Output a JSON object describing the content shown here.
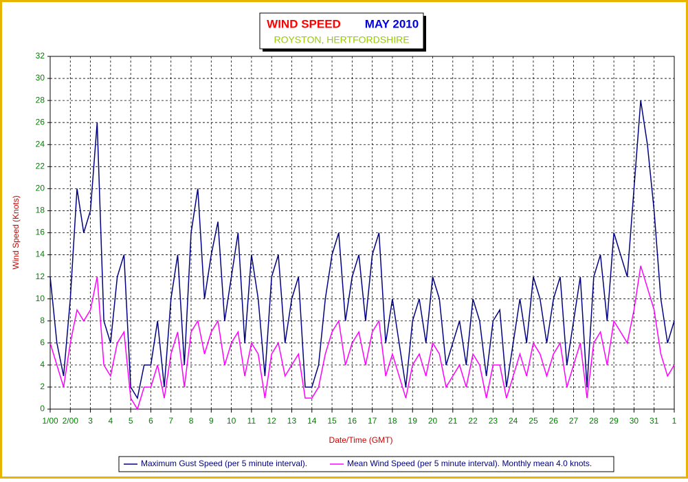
{
  "chart_data": {
    "type": "line",
    "title": "WIND SPEED",
    "title_period": "MAY 2010",
    "subtitle": "ROYSTON, HERTFORDSHIRE",
    "x_label": "Date/Time (GMT)",
    "y_label": "Wind Speed (Knots)",
    "grid": true,
    "legend": "bottom",
    "xlim": [
      0,
      744
    ],
    "ylim": [
      0,
      32
    ],
    "yticks": [
      0,
      2,
      4,
      6,
      8,
      10,
      12,
      14,
      16,
      18,
      20,
      22,
      24,
      26,
      28,
      30,
      32
    ],
    "xticks": [
      {
        "value": 0,
        "label": "1/00"
      },
      {
        "value": 24,
        "label": "2/00"
      },
      {
        "value": 48,
        "label": "3"
      },
      {
        "value": 72,
        "label": "4"
      },
      {
        "value": 96,
        "label": "5"
      },
      {
        "value": 120,
        "label": "6"
      },
      {
        "value": 144,
        "label": "7"
      },
      {
        "value": 168,
        "label": "8"
      },
      {
        "value": 192,
        "label": "9"
      },
      {
        "value": 216,
        "label": "10"
      },
      {
        "value": 240,
        "label": "11"
      },
      {
        "value": 264,
        "label": "12"
      },
      {
        "value": 288,
        "label": "13"
      },
      {
        "value": 312,
        "label": "14"
      },
      {
        "value": 336,
        "label": "15"
      },
      {
        "value": 360,
        "label": "16"
      },
      {
        "value": 384,
        "label": "17"
      },
      {
        "value": 408,
        "label": "18"
      },
      {
        "value": 432,
        "label": "19"
      },
      {
        "value": 456,
        "label": "20"
      },
      {
        "value": 480,
        "label": "21"
      },
      {
        "value": 504,
        "label": "22"
      },
      {
        "value": 528,
        "label": "23"
      },
      {
        "value": 552,
        "label": "24"
      },
      {
        "value": 576,
        "label": "25"
      },
      {
        "value": 600,
        "label": "26"
      },
      {
        "value": 624,
        "label": "27"
      },
      {
        "value": 648,
        "label": "28"
      },
      {
        "value": 672,
        "label": "29"
      },
      {
        "value": 696,
        "label": "30"
      },
      {
        "value": 720,
        "label": "31"
      },
      {
        "value": 744,
        "label": "1"
      }
    ],
    "x": [
      0,
      8,
      16,
      24,
      32,
      40,
      48,
      56,
      64,
      72,
      80,
      88,
      96,
      104,
      112,
      120,
      128,
      136,
      144,
      152,
      160,
      168,
      176,
      184,
      192,
      200,
      208,
      216,
      224,
      232,
      240,
      248,
      256,
      264,
      272,
      280,
      288,
      296,
      304,
      312,
      320,
      328,
      336,
      344,
      352,
      360,
      368,
      376,
      384,
      392,
      400,
      408,
      416,
      424,
      432,
      440,
      448,
      456,
      464,
      472,
      480,
      488,
      496,
      504,
      512,
      520,
      528,
      536,
      544,
      552,
      560,
      568,
      576,
      584,
      592,
      600,
      608,
      616,
      624,
      632,
      640,
      648,
      656,
      664,
      672,
      680,
      688,
      696,
      704,
      712,
      720,
      728,
      736,
      744
    ],
    "series": [
      {
        "name": "Maximum Gust Speed (per 5 minute interval).",
        "color": "#000080",
        "values": [
          12,
          6,
          3,
          10,
          20,
          16,
          18,
          26,
          8,
          6,
          12,
          14,
          2,
          1,
          4,
          4,
          8,
          2,
          10,
          14,
          4,
          16,
          20,
          10,
          14,
          17,
          8,
          12,
          16,
          6,
          14,
          10,
          3,
          12,
          14,
          6,
          10,
          12,
          2,
          2,
          4,
          10,
          14,
          16,
          8,
          12,
          14,
          8,
          14,
          16,
          6,
          10,
          6,
          2,
          8,
          10,
          6,
          12,
          10,
          4,
          6,
          8,
          4,
          10,
          8,
          3,
          8,
          9,
          2,
          6,
          10,
          6,
          12,
          10,
          6,
          10,
          12,
          4,
          8,
          12,
          2,
          12,
          14,
          8,
          16,
          14,
          12,
          20,
          28,
          24,
          18,
          10,
          6,
          8
        ]
      },
      {
        "name": "Mean Wind Speed (per 5 minute interval). Monthly mean 4.0 knots.",
        "color": "#ff00ff",
        "values": [
          6,
          4,
          2,
          6,
          9,
          8,
          9,
          12,
          4,
          3,
          6,
          7,
          1,
          0,
          2,
          2,
          4,
          1,
          5,
          7,
          2,
          7,
          8,
          5,
          7,
          8,
          4,
          6,
          7,
          3,
          6,
          5,
          1,
          5,
          6,
          3,
          4,
          5,
          1,
          1,
          2,
          5,
          7,
          8,
          4,
          6,
          7,
          4,
          7,
          8,
          3,
          5,
          3,
          1,
          4,
          5,
          3,
          6,
          5,
          2,
          3,
          4,
          2,
          5,
          4,
          1,
          4,
          4,
          1,
          3,
          5,
          3,
          6,
          5,
          3,
          5,
          6,
          2,
          4,
          6,
          1,
          6,
          7,
          4,
          8,
          7,
          6,
          9,
          13,
          11,
          9,
          5,
          3,
          4
        ]
      }
    ]
  }
}
